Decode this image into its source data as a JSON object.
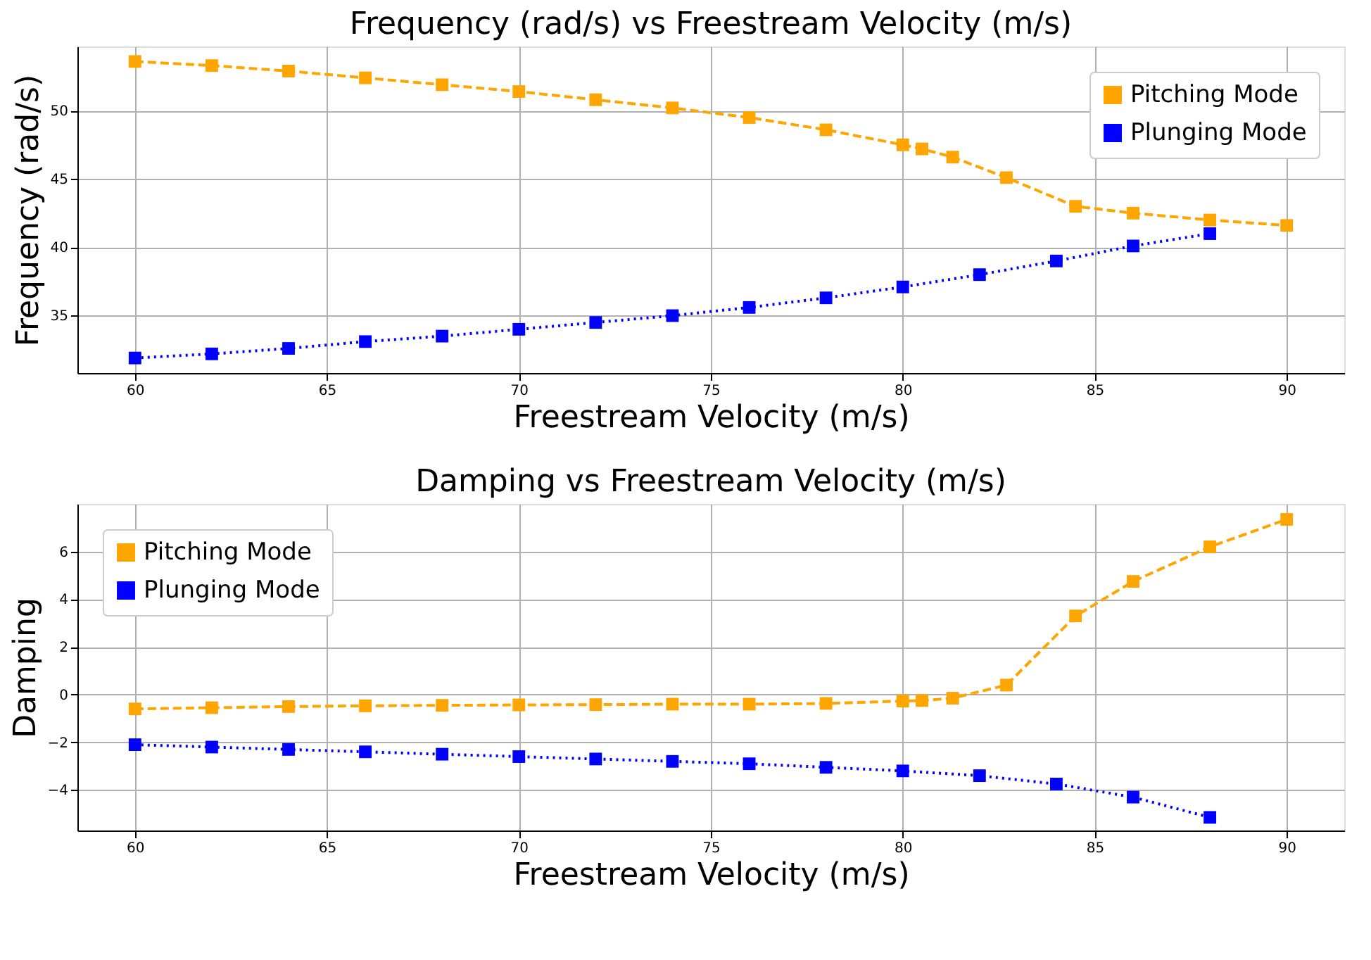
{
  "chart_data": [
    {
      "type": "line",
      "title": "Frequency (rad/s) vs Freestream Velocity (m/s)",
      "xlabel": "Freestream Velocity (m/s)",
      "ylabel": "Frequency (rad/s)",
      "xlim": [
        58.5,
        91.5
      ],
      "xticks": [
        60,
        65,
        70,
        75,
        80,
        85,
        90
      ],
      "ylim": [
        30.8,
        54.7
      ],
      "yticks": [
        35,
        40,
        45,
        50
      ],
      "grid": true,
      "legend": "top right",
      "marker": "square",
      "series": [
        {
          "name": "Pitching Mode",
          "color": "#ffa500",
          "line_style": "dashed",
          "x": [
            60,
            62,
            64,
            66,
            68,
            70,
            72,
            74,
            76,
            78,
            80,
            80.5,
            81.3,
            82.7,
            84.5,
            86,
            88,
            90
          ],
          "values": [
            53.6,
            53.3,
            52.9,
            52.4,
            51.9,
            51.4,
            50.8,
            50.2,
            49.5,
            48.6,
            47.5,
            47.2,
            46.6,
            45.1,
            43.0,
            42.5,
            42.0,
            41.6
          ]
        },
        {
          "name": "Plunging Mode",
          "color": "#0000ff",
          "line_style": "dotted",
          "x": [
            60,
            62,
            64,
            66,
            68,
            70,
            72,
            74,
            76,
            78,
            80,
            82,
            84,
            86,
            88
          ],
          "values": [
            31.9,
            32.2,
            32.6,
            33.1,
            33.5,
            34.0,
            34.5,
            35.0,
            35.6,
            36.3,
            37.1,
            38.0,
            39.0,
            40.1,
            41.0
          ]
        }
      ]
    },
    {
      "type": "line",
      "title": "Damping vs Freestream Velocity (m/s)",
      "xlabel": "Freestream Velocity (m/s)",
      "ylabel": "Damping",
      "xlim": [
        58.5,
        91.5
      ],
      "xticks": [
        60,
        65,
        70,
        75,
        80,
        85,
        90
      ],
      "ylim": [
        -5.7,
        8.0
      ],
      "yticks": [
        -4,
        -2,
        0,
        2,
        4,
        6
      ],
      "grid": true,
      "legend": "top left",
      "marker": "square",
      "series": [
        {
          "name": "Pitching Mode",
          "color": "#ffa500",
          "line_style": "dashed",
          "x": [
            60,
            62,
            64,
            66,
            68,
            70,
            72,
            74,
            76,
            78,
            80,
            80.5,
            81.3,
            82.7,
            84.5,
            86,
            88,
            90
          ],
          "values": [
            -0.6,
            -0.55,
            -0.5,
            -0.47,
            -0.45,
            -0.43,
            -0.42,
            -0.4,
            -0.4,
            -0.37,
            -0.27,
            -0.25,
            -0.15,
            0.4,
            3.3,
            4.75,
            6.2,
            7.35
          ]
        },
        {
          "name": "Plunging Mode",
          "color": "#0000ff",
          "line_style": "dotted",
          "x": [
            60,
            62,
            64,
            66,
            68,
            70,
            72,
            74,
            76,
            78,
            80,
            82,
            84,
            86,
            88
          ],
          "values": [
            -2.1,
            -2.2,
            -2.3,
            -2.4,
            -2.5,
            -2.6,
            -2.7,
            -2.8,
            -2.9,
            -3.05,
            -3.2,
            -3.4,
            -3.75,
            -4.3,
            -5.15
          ]
        }
      ]
    }
  ]
}
